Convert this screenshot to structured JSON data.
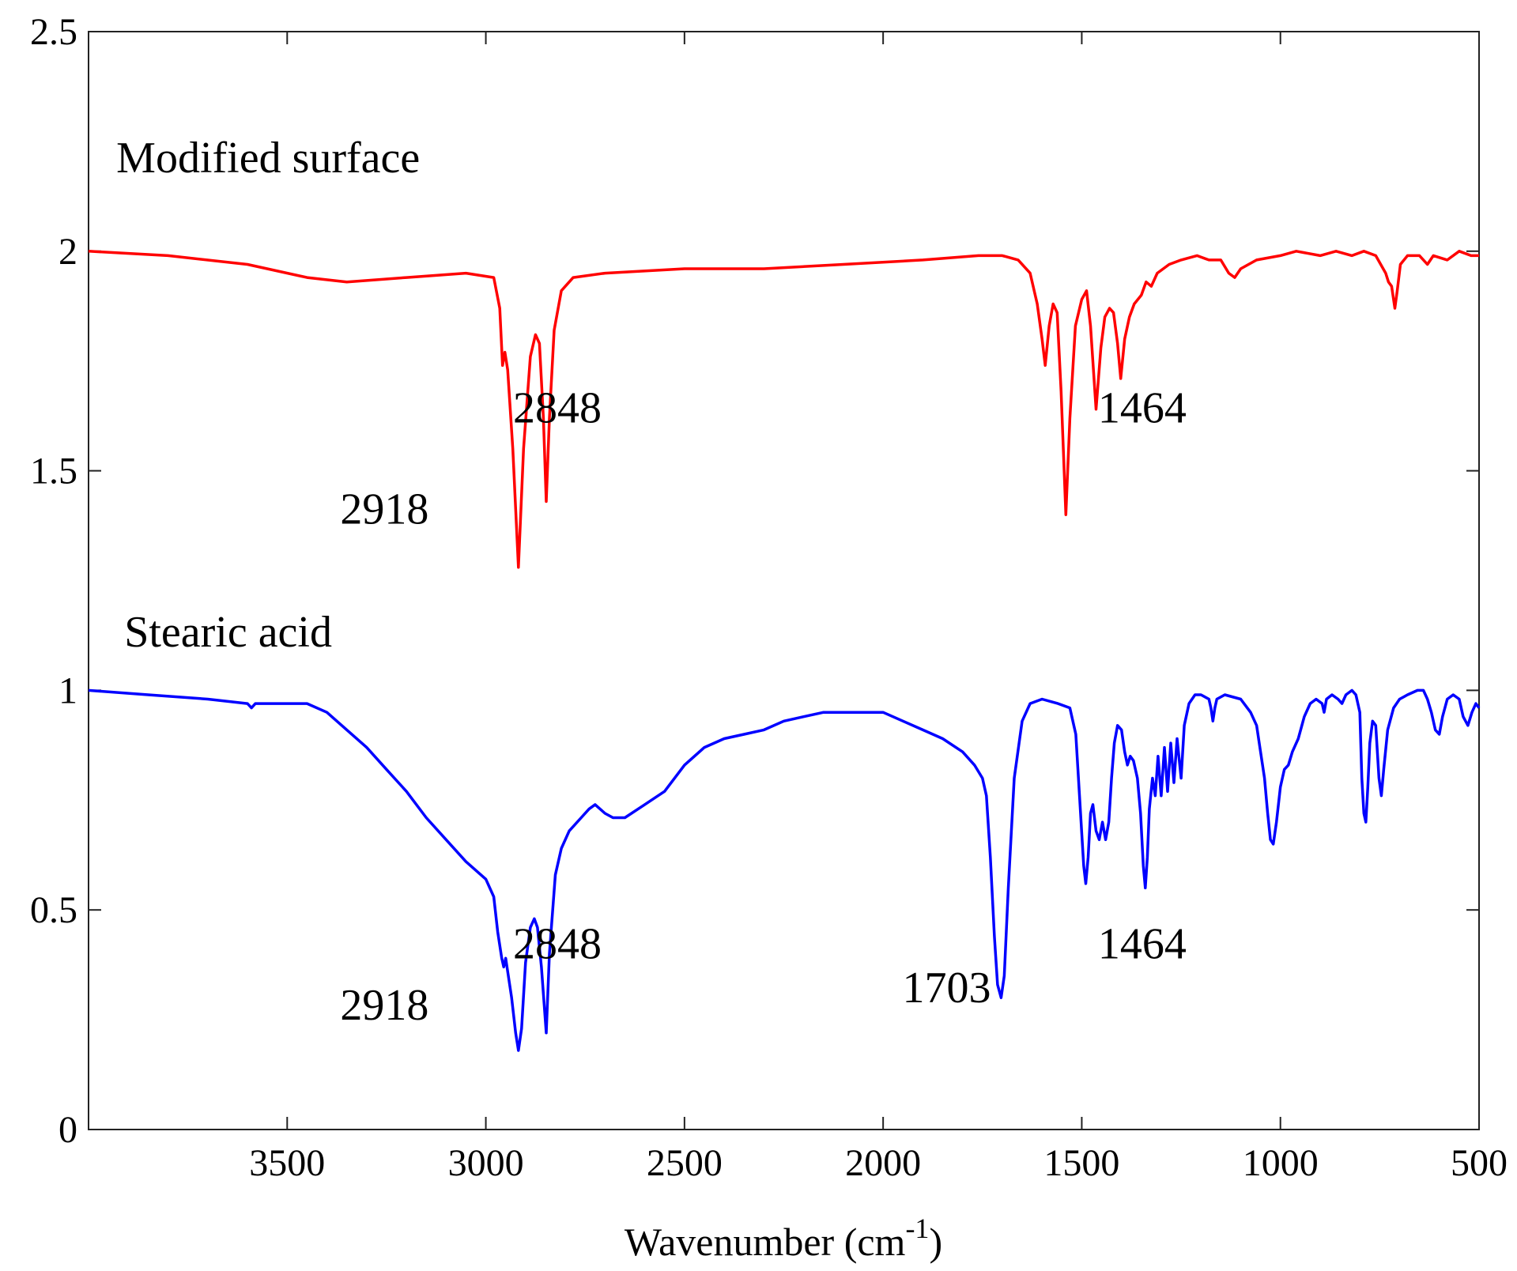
{
  "chart_data": {
    "type": "line",
    "title": "",
    "xlabel": {
      "main": "Wavenumber (cm",
      "sup": "-1",
      "close": ")"
    },
    "ylabel": "",
    "xlim": [
      4000,
      500
    ],
    "ylim": [
      0,
      2.5
    ],
    "x_reversed": true,
    "grid": false,
    "legend": "none",
    "x_ticks": [
      3500,
      3000,
      2500,
      2000,
      1500,
      1000,
      500
    ],
    "x_tick_labels": [
      "3500",
      "3000",
      "2500",
      "2000",
      "1500",
      "1000",
      "500"
    ],
    "y_ticks": [
      0,
      0.5,
      1,
      1.5,
      2,
      2.5
    ],
    "y_tick_labels": [
      "0",
      "0.5",
      "1",
      "1.5",
      "2",
      "2.5"
    ],
    "series": [
      {
        "name": "Modified surface",
        "color": "#ff0000",
        "points": [
          [
            4000,
            2.0
          ],
          [
            3800,
            1.99
          ],
          [
            3600,
            1.97
          ],
          [
            3450,
            1.94
          ],
          [
            3350,
            1.93
          ],
          [
            3200,
            1.94
          ],
          [
            3050,
            1.95
          ],
          [
            2980,
            1.94
          ],
          [
            2965,
            1.87
          ],
          [
            2958,
            1.74
          ],
          [
            2952,
            1.77
          ],
          [
            2945,
            1.73
          ],
          [
            2932,
            1.55
          ],
          [
            2918,
            1.28
          ],
          [
            2905,
            1.55
          ],
          [
            2888,
            1.76
          ],
          [
            2875,
            1.81
          ],
          [
            2865,
            1.79
          ],
          [
            2855,
            1.62
          ],
          [
            2848,
            1.43
          ],
          [
            2840,
            1.62
          ],
          [
            2828,
            1.82
          ],
          [
            2810,
            1.91
          ],
          [
            2780,
            1.94
          ],
          [
            2700,
            1.95
          ],
          [
            2500,
            1.96
          ],
          [
            2300,
            1.96
          ],
          [
            2100,
            1.97
          ],
          [
            1900,
            1.98
          ],
          [
            1760,
            1.99
          ],
          [
            1700,
            1.99
          ],
          [
            1660,
            1.98
          ],
          [
            1630,
            1.95
          ],
          [
            1612,
            1.88
          ],
          [
            1600,
            1.8
          ],
          [
            1592,
            1.74
          ],
          [
            1582,
            1.83
          ],
          [
            1572,
            1.88
          ],
          [
            1562,
            1.86
          ],
          [
            1552,
            1.68
          ],
          [
            1540,
            1.4
          ],
          [
            1530,
            1.62
          ],
          [
            1516,
            1.83
          ],
          [
            1500,
            1.89
          ],
          [
            1488,
            1.91
          ],
          [
            1478,
            1.83
          ],
          [
            1464,
            1.64
          ],
          [
            1452,
            1.78
          ],
          [
            1442,
            1.85
          ],
          [
            1430,
            1.87
          ],
          [
            1420,
            1.86
          ],
          [
            1410,
            1.79
          ],
          [
            1402,
            1.71
          ],
          [
            1392,
            1.8
          ],
          [
            1380,
            1.85
          ],
          [
            1368,
            1.88
          ],
          [
            1350,
            1.9
          ],
          [
            1338,
            1.93
          ],
          [
            1325,
            1.92
          ],
          [
            1310,
            1.95
          ],
          [
            1280,
            1.97
          ],
          [
            1250,
            1.98
          ],
          [
            1210,
            1.99
          ],
          [
            1180,
            1.98
          ],
          [
            1150,
            1.98
          ],
          [
            1130,
            1.95
          ],
          [
            1115,
            1.94
          ],
          [
            1100,
            1.96
          ],
          [
            1060,
            1.98
          ],
          [
            1000,
            1.99
          ],
          [
            960,
            2.0
          ],
          [
            900,
            1.99
          ],
          [
            860,
            2.0
          ],
          [
            820,
            1.99
          ],
          [
            790,
            2.0
          ],
          [
            760,
            1.99
          ],
          [
            735,
            1.95
          ],
          [
            728,
            1.93
          ],
          [
            720,
            1.92
          ],
          [
            712,
            1.87
          ],
          [
            706,
            1.91
          ],
          [
            698,
            1.97
          ],
          [
            680,
            1.99
          ],
          [
            650,
            1.99
          ],
          [
            630,
            1.97
          ],
          [
            615,
            1.99
          ],
          [
            580,
            1.98
          ],
          [
            550,
            2.0
          ],
          [
            520,
            1.99
          ],
          [
            500,
            1.99
          ]
        ]
      },
      {
        "name": "Stearic acid",
        "color": "#0000ff",
        "points": [
          [
            4000,
            1.0
          ],
          [
            3850,
            0.99
          ],
          [
            3700,
            0.98
          ],
          [
            3600,
            0.97
          ],
          [
            3590,
            0.96
          ],
          [
            3580,
            0.97
          ],
          [
            3500,
            0.97
          ],
          [
            3450,
            0.97
          ],
          [
            3400,
            0.95
          ],
          [
            3350,
            0.91
          ],
          [
            3300,
            0.87
          ],
          [
            3250,
            0.82
          ],
          [
            3200,
            0.77
          ],
          [
            3150,
            0.71
          ],
          [
            3100,
            0.66
          ],
          [
            3050,
            0.61
          ],
          [
            3000,
            0.57
          ],
          [
            2980,
            0.53
          ],
          [
            2970,
            0.45
          ],
          [
            2960,
            0.39
          ],
          [
            2955,
            0.37
          ],
          [
            2950,
            0.39
          ],
          [
            2945,
            0.36
          ],
          [
            2935,
            0.3
          ],
          [
            2925,
            0.22
          ],
          [
            2918,
            0.18
          ],
          [
            2910,
            0.23
          ],
          [
            2900,
            0.38
          ],
          [
            2888,
            0.46
          ],
          [
            2878,
            0.48
          ],
          [
            2870,
            0.46
          ],
          [
            2860,
            0.37
          ],
          [
            2848,
            0.22
          ],
          [
            2840,
            0.4
          ],
          [
            2825,
            0.58
          ],
          [
            2810,
            0.64
          ],
          [
            2790,
            0.68
          ],
          [
            2760,
            0.71
          ],
          [
            2740,
            0.73
          ],
          [
            2725,
            0.74
          ],
          [
            2700,
            0.72
          ],
          [
            2680,
            0.71
          ],
          [
            2650,
            0.71
          ],
          [
            2600,
            0.74
          ],
          [
            2550,
            0.77
          ],
          [
            2500,
            0.83
          ],
          [
            2450,
            0.87
          ],
          [
            2400,
            0.89
          ],
          [
            2350,
            0.9
          ],
          [
            2300,
            0.91
          ],
          [
            2250,
            0.93
          ],
          [
            2200,
            0.94
          ],
          [
            2150,
            0.95
          ],
          [
            2100,
            0.95
          ],
          [
            2050,
            0.95
          ],
          [
            2000,
            0.95
          ],
          [
            1950,
            0.93
          ],
          [
            1900,
            0.91
          ],
          [
            1850,
            0.89
          ],
          [
            1800,
            0.86
          ],
          [
            1770,
            0.83
          ],
          [
            1750,
            0.8
          ],
          [
            1740,
            0.76
          ],
          [
            1730,
            0.62
          ],
          [
            1720,
            0.44
          ],
          [
            1712,
            0.33
          ],
          [
            1703,
            0.3
          ],
          [
            1695,
            0.35
          ],
          [
            1685,
            0.55
          ],
          [
            1670,
            0.8
          ],
          [
            1650,
            0.93
          ],
          [
            1630,
            0.97
          ],
          [
            1600,
            0.98
          ],
          [
            1560,
            0.97
          ],
          [
            1530,
            0.96
          ],
          [
            1515,
            0.9
          ],
          [
            1505,
            0.75
          ],
          [
            1495,
            0.6
          ],
          [
            1490,
            0.56
          ],
          [
            1484,
            0.62
          ],
          [
            1478,
            0.72
          ],
          [
            1472,
            0.74
          ],
          [
            1464,
            0.68
          ],
          [
            1456,
            0.66
          ],
          [
            1448,
            0.7
          ],
          [
            1440,
            0.66
          ],
          [
            1432,
            0.7
          ],
          [
            1425,
            0.8
          ],
          [
            1418,
            0.88
          ],
          [
            1410,
            0.92
          ],
          [
            1400,
            0.91
          ],
          [
            1392,
            0.86
          ],
          [
            1385,
            0.83
          ],
          [
            1378,
            0.85
          ],
          [
            1370,
            0.84
          ],
          [
            1360,
            0.8
          ],
          [
            1352,
            0.72
          ],
          [
            1345,
            0.6
          ],
          [
            1340,
            0.55
          ],
          [
            1335,
            0.62
          ],
          [
            1330,
            0.73
          ],
          [
            1322,
            0.8
          ],
          [
            1315,
            0.76
          ],
          [
            1308,
            0.85
          ],
          [
            1300,
            0.76
          ],
          [
            1292,
            0.87
          ],
          [
            1284,
            0.77
          ],
          [
            1276,
            0.88
          ],
          [
            1268,
            0.79
          ],
          [
            1260,
            0.89
          ],
          [
            1250,
            0.8
          ],
          [
            1242,
            0.92
          ],
          [
            1230,
            0.97
          ],
          [
            1215,
            0.99
          ],
          [
            1200,
            0.99
          ],
          [
            1180,
            0.98
          ],
          [
            1175,
            0.96
          ],
          [
            1170,
            0.93
          ],
          [
            1165,
            0.96
          ],
          [
            1160,
            0.98
          ],
          [
            1140,
            0.99
          ],
          [
            1100,
            0.98
          ],
          [
            1075,
            0.95
          ],
          [
            1060,
            0.92
          ],
          [
            1050,
            0.86
          ],
          [
            1040,
            0.8
          ],
          [
            1032,
            0.72
          ],
          [
            1025,
            0.66
          ],
          [
            1018,
            0.65
          ],
          [
            1010,
            0.7
          ],
          [
            1000,
            0.78
          ],
          [
            990,
            0.82
          ],
          [
            980,
            0.83
          ],
          [
            970,
            0.86
          ],
          [
            955,
            0.89
          ],
          [
            940,
            0.94
          ],
          [
            925,
            0.97
          ],
          [
            910,
            0.98
          ],
          [
            895,
            0.97
          ],
          [
            890,
            0.95
          ],
          [
            884,
            0.98
          ],
          [
            870,
            0.99
          ],
          [
            855,
            0.98
          ],
          [
            845,
            0.97
          ],
          [
            835,
            0.99
          ],
          [
            820,
            1.0
          ],
          [
            810,
            0.99
          ],
          [
            800,
            0.95
          ],
          [
            795,
            0.8
          ],
          [
            790,
            0.72
          ],
          [
            785,
            0.7
          ],
          [
            780,
            0.78
          ],
          [
            775,
            0.88
          ],
          [
            768,
            0.93
          ],
          [
            760,
            0.92
          ],
          [
            752,
            0.8
          ],
          [
            746,
            0.76
          ],
          [
            740,
            0.82
          ],
          [
            730,
            0.91
          ],
          [
            715,
            0.96
          ],
          [
            700,
            0.98
          ],
          [
            680,
            0.99
          ],
          [
            655,
            1.0
          ],
          [
            640,
            1.0
          ],
          [
            630,
            0.98
          ],
          [
            620,
            0.95
          ],
          [
            610,
            0.91
          ],
          [
            600,
            0.9
          ],
          [
            592,
            0.94
          ],
          [
            580,
            0.98
          ],
          [
            565,
            0.99
          ],
          [
            550,
            0.98
          ],
          [
            540,
            0.94
          ],
          [
            528,
            0.92
          ],
          [
            518,
            0.95
          ],
          [
            508,
            0.97
          ],
          [
            500,
            0.96
          ]
        ]
      }
    ],
    "series_labels": [
      {
        "text": "Modified surface",
        "x": 3930,
        "y": 2.18
      },
      {
        "text": "Stearic acid",
        "x": 3910,
        "y": 1.1
      }
    ],
    "annotations": [
      {
        "text": "2918",
        "x": 3255,
        "y": 1.38
      },
      {
        "text": "2848",
        "x": 2820,
        "y": 1.61
      },
      {
        "text": "1464",
        "x": 1348,
        "y": 1.61
      },
      {
        "text": "2918",
        "x": 3255,
        "y": 0.25
      },
      {
        "text": "2848",
        "x": 2820,
        "y": 0.39
      },
      {
        "text": "1703",
        "x": 1840,
        "y": 0.29
      },
      {
        "text": "1464",
        "x": 1348,
        "y": 0.39
      }
    ]
  }
}
